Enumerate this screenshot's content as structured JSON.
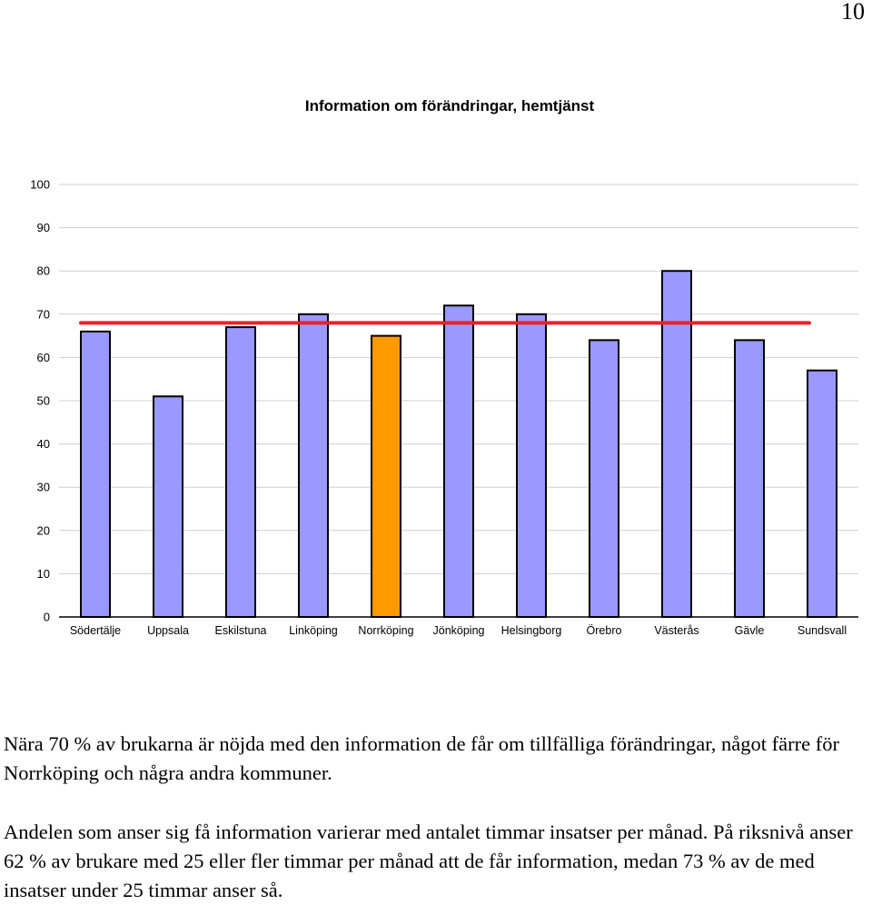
{
  "page_number": "10",
  "chart_data": {
    "type": "bar",
    "title": "Information om förändringar, hemtjänst",
    "xlabel": "",
    "ylabel": "",
    "ylim": [
      0,
      100
    ],
    "yticks": [
      0,
      10,
      20,
      30,
      40,
      50,
      60,
      70,
      80,
      90,
      100
    ],
    "grid": true,
    "categories": [
      "Södertälje",
      "Uppsala",
      "Eskilstuna",
      "Linköping",
      "Norrköping",
      "Jönköping",
      "Helsingborg",
      "Örebro",
      "Västerås",
      "Gävle",
      "Sundsvall"
    ],
    "values": [
      66,
      51,
      67,
      70,
      65,
      72,
      70,
      64,
      80,
      64,
      57
    ],
    "highlighted_category": "Norrköping",
    "reference_line": {
      "value": 68
    },
    "colors": {
      "bar": "#9999ff",
      "highlight_bar": "#ff9900",
      "reference_line": "#e8212a",
      "grid": "#cfcfcf",
      "bar_border": "#000000"
    }
  },
  "text": {
    "paragraph_1": "Nära 70 % av brukarna är nöjda med den information de får om tillfälliga förändringar, något färre för Norrköping och några andra kommuner.",
    "paragraph_2": "Andelen som anser sig få information varierar med antalet timmar insatser per månad. På riksnivå anser 62 % av brukare med 25 eller fler timmar per månad att de får information, medan 73 % av de med insatser under 25 timmar anser så."
  }
}
